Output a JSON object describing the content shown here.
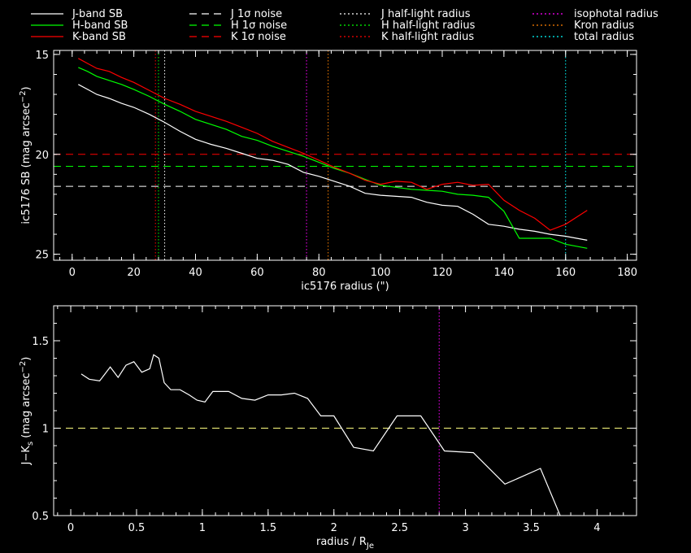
{
  "legend": {
    "items": [
      {
        "label": "J-band SB",
        "color": "#ffffff",
        "dash": "solid"
      },
      {
        "label": "H-band SB",
        "color": "#00ff00",
        "dash": "solid"
      },
      {
        "label": "K-band SB",
        "color": "#ff0000",
        "dash": "solid"
      },
      {
        "label": "J 1σ noise",
        "color": "#ffffff",
        "dash": "dashed"
      },
      {
        "label": "H 1σ noise",
        "color": "#00ff00",
        "dash": "dashed"
      },
      {
        "label": "K 1σ noise",
        "color": "#ff0000",
        "dash": "dashed"
      },
      {
        "label": "J half-light radius",
        "color": "#ffffff",
        "dash": "dotted"
      },
      {
        "label": "H half-light radius",
        "color": "#00ff00",
        "dash": "dotted"
      },
      {
        "label": "K half-light radius",
        "color": "#ff0000",
        "dash": "dotted"
      },
      {
        "label": "isophotal radius",
        "color": "#ff00ff",
        "dash": "dotted"
      },
      {
        "label": "Kron radius",
        "color": "#ff8000",
        "dash": "dotted"
      },
      {
        "label": "total radius",
        "color": "#00ffff",
        "dash": "dotted"
      }
    ]
  },
  "chart_data": [
    {
      "type": "line",
      "xlabel": "ic5176 radius (\")",
      "ylabel": "ic5176 SB (mag arcsec",
      "ylabel_sup": "−2",
      "ylabel_end": ")",
      "xlim": [
        -6,
        183
      ],
      "ylim": [
        25.3,
        14.8
      ],
      "xticks": [
        0,
        20,
        40,
        60,
        80,
        100,
        120,
        140,
        160,
        180
      ],
      "yticks": [
        15,
        20,
        25
      ],
      "y_reversed": true,
      "series": [
        {
          "name": "J-band SB",
          "color": "#ffffff",
          "style": "solid",
          "x": [
            2,
            5,
            8,
            12,
            16,
            20,
            25,
            30,
            35,
            40,
            45,
            50,
            55,
            60,
            65,
            70,
            75,
            80,
            85,
            90,
            95,
            100,
            105,
            110,
            115,
            120,
            125,
            130,
            135,
            140,
            145,
            150,
            155,
            160,
            167
          ],
          "y": [
            16.5,
            16.75,
            17.0,
            17.2,
            17.45,
            17.65,
            18.0,
            18.4,
            18.85,
            19.25,
            19.5,
            19.7,
            19.95,
            20.2,
            20.3,
            20.5,
            20.9,
            21.1,
            21.35,
            21.6,
            21.95,
            22.05,
            22.1,
            22.15,
            22.4,
            22.55,
            22.6,
            23.0,
            23.5,
            23.6,
            23.75,
            23.85,
            24.0,
            24.1,
            24.3
          ]
        },
        {
          "name": "H-band SB",
          "color": "#00ff00",
          "style": "solid",
          "x": [
            2,
            5,
            8,
            12,
            16,
            20,
            25,
            30,
            35,
            40,
            45,
            50,
            55,
            60,
            65,
            70,
            75,
            80,
            85,
            90,
            95,
            100,
            105,
            110,
            115,
            120,
            125,
            130,
            135,
            140,
            145,
            150,
            155,
            160,
            167
          ],
          "y": [
            15.65,
            15.85,
            16.1,
            16.3,
            16.5,
            16.75,
            17.1,
            17.5,
            17.85,
            18.25,
            18.5,
            18.75,
            19.1,
            19.3,
            19.6,
            19.85,
            20.1,
            20.4,
            20.7,
            20.95,
            21.25,
            21.55,
            21.65,
            21.75,
            21.8,
            21.85,
            22.0,
            22.05,
            22.15,
            22.85,
            24.2,
            24.2,
            24.2,
            24.5,
            24.7
          ]
        },
        {
          "name": "K-band SB",
          "color": "#ff0000",
          "style": "solid",
          "x": [
            2,
            5,
            8,
            12,
            16,
            20,
            25,
            30,
            35,
            40,
            45,
            50,
            55,
            60,
            65,
            70,
            75,
            80,
            85,
            90,
            95,
            100,
            105,
            110,
            115,
            120,
            125,
            130,
            135,
            140,
            145,
            150,
            155,
            160,
            167
          ],
          "y": [
            15.2,
            15.45,
            15.7,
            15.85,
            16.15,
            16.4,
            16.8,
            17.2,
            17.5,
            17.85,
            18.1,
            18.35,
            18.65,
            18.95,
            19.35,
            19.65,
            19.95,
            20.3,
            20.65,
            20.95,
            21.3,
            21.5,
            21.35,
            21.4,
            21.75,
            21.5,
            21.4,
            21.55,
            21.5,
            22.3,
            22.8,
            23.2,
            23.8,
            23.5,
            22.8
          ]
        }
      ],
      "hlines": [
        {
          "name": "J 1σ noise",
          "y": 21.6,
          "color": "#ffffff",
          "style": "dashed"
        },
        {
          "name": "H 1σ noise",
          "y": 20.6,
          "color": "#00ff00",
          "style": "dashed"
        },
        {
          "name": "K 1σ noise",
          "y": 20.0,
          "color": "#ff0000",
          "style": "dashed"
        }
      ],
      "vlines": [
        {
          "name": "J half-light radius",
          "x": 30,
          "color": "#ffffff",
          "style": "dotted"
        },
        {
          "name": "H half-light radius",
          "x": 28,
          "color": "#00ff00",
          "style": "dotted"
        },
        {
          "name": "K half-light radius",
          "x": 27,
          "color": "#ff0000",
          "style": "dotted"
        },
        {
          "name": "isophotal radius",
          "x": 76,
          "color": "#ff00ff",
          "style": "dotted"
        },
        {
          "name": "Kron radius",
          "x": 83,
          "color": "#ff8000",
          "style": "dotted"
        },
        {
          "name": "total radius",
          "x": 160,
          "color": "#00ffff",
          "style": "dotted"
        }
      ]
    },
    {
      "type": "line",
      "xlabel": "radius / R",
      "xlabel_sub": "Je",
      "ylabel": "J−K",
      "ylabel_sub": "s",
      "ylabel_mid": " (mag arcsec",
      "ylabel_sup": "−2",
      "ylabel_end": ")",
      "xlim": [
        -0.13,
        4.3
      ],
      "ylim": [
        0.5,
        1.7
      ],
      "xticks": [
        0,
        0.5,
        1,
        1.5,
        2,
        2.5,
        3,
        3.5,
        4
      ],
      "ytick_labels": [
        "0.5",
        "1",
        "1.5"
      ],
      "yticks": [
        0.5,
        1,
        1.5
      ],
      "xtick_labels": [
        "0",
        "0.5",
        "1",
        "1.5",
        "2",
        "2.5",
        "3",
        "3.5",
        "4"
      ],
      "series": [
        {
          "color": "#ffffff",
          "style": "solid",
          "x": [
            0.08,
            0.14,
            0.22,
            0.3,
            0.36,
            0.42,
            0.48,
            0.54,
            0.6,
            0.63,
            0.67,
            0.71,
            0.76,
            0.83,
            0.9,
            0.96,
            1.02,
            1.08,
            1.14,
            1.2,
            1.3,
            1.4,
            1.5,
            1.6,
            1.7,
            1.8,
            1.9,
            2.0,
            2.15,
            2.3,
            2.48,
            2.66,
            2.84,
            3.06,
            3.3,
            3.57,
            3.72
          ],
          "y": [
            1.31,
            1.28,
            1.27,
            1.35,
            1.29,
            1.36,
            1.38,
            1.32,
            1.34,
            1.42,
            1.4,
            1.26,
            1.22,
            1.22,
            1.19,
            1.16,
            1.15,
            1.21,
            1.21,
            1.21,
            1.17,
            1.16,
            1.19,
            1.19,
            1.2,
            1.17,
            1.07,
            1.07,
            0.89,
            0.87,
            1.07,
            1.07,
            0.87,
            0.86,
            0.68,
            0.77,
            0.5
          ]
        }
      ],
      "hlines": [
        {
          "y": 1.0,
          "color": "#ffff80",
          "style": "dashed"
        }
      ],
      "vlines": [
        {
          "x": 2.8,
          "color": "#ff00ff",
          "style": "dotted"
        }
      ]
    }
  ]
}
